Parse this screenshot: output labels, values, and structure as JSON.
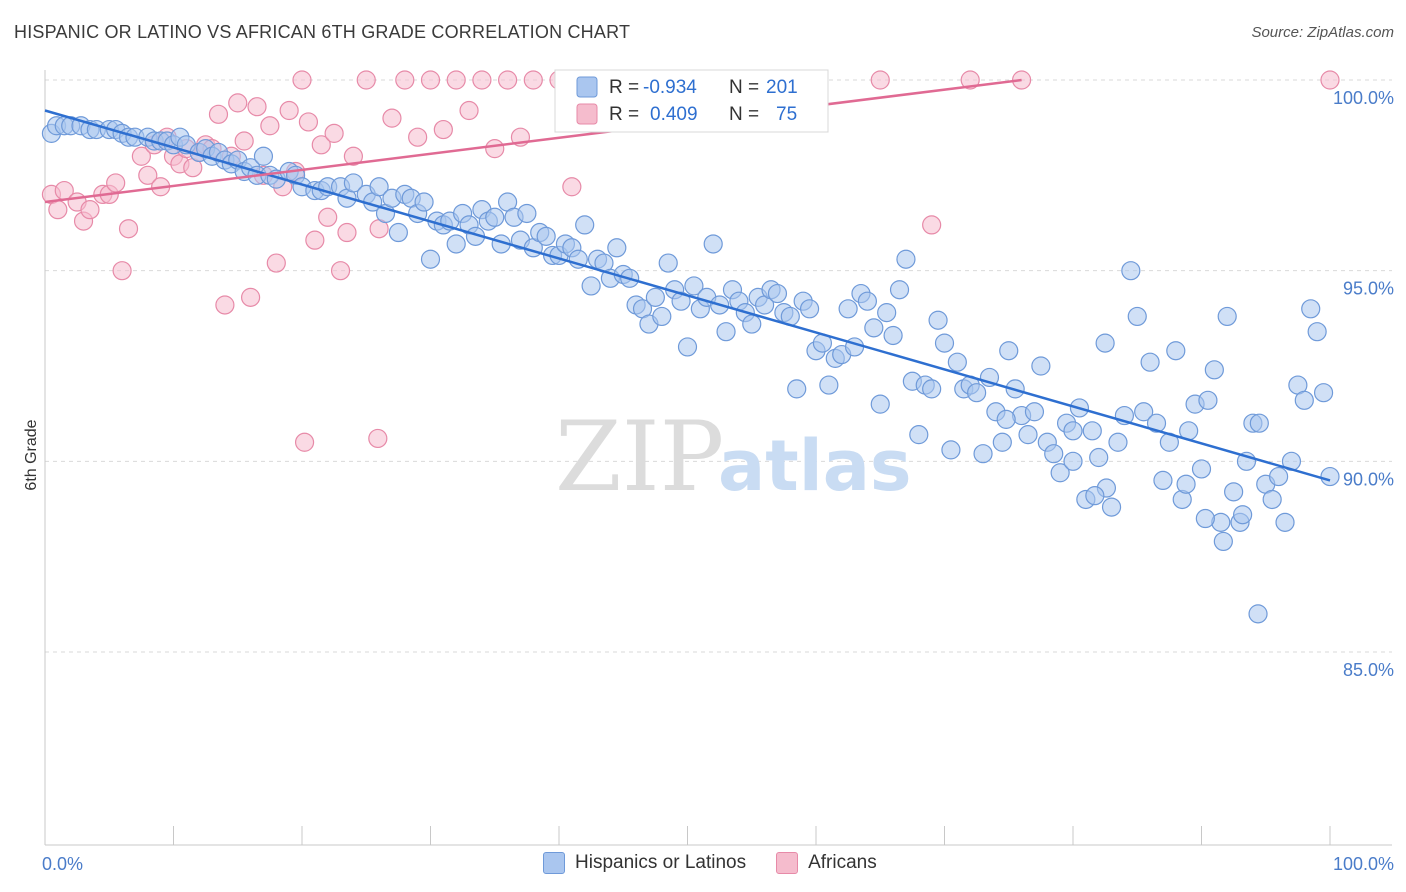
{
  "title": "HISPANIC OR LATINO VS AFRICAN 6TH GRADE CORRELATION CHART",
  "source": "Source: ZipAtlas.com",
  "watermark": {
    "zip": "ZIP",
    "atlas": "atlas"
  },
  "colors": {
    "blue_fill": "#aac6ef",
    "blue_stroke": "#6f9ad9",
    "blue_line": "#2e6fd0",
    "pink_fill": "#f5bccd",
    "pink_stroke": "#e78aa8",
    "pink_line": "#e06a93",
    "tick_text": "#4a7cc9",
    "grid": "#d9d9d9"
  },
  "legend_top": [
    {
      "r_label": "R =",
      "r_value": "-0.934",
      "n_label": "N =",
      "n_value": "201"
    },
    {
      "r_label": "R =",
      "r_value": "0.409",
      "n_label": "N =",
      "n_value": "75"
    }
  ],
  "legend_bottom": [
    "Hispanics or Latinos",
    "Africans"
  ],
  "chart_data": {
    "type": "scatter",
    "title": "HISPANIC OR LATINO VS AFRICAN 6TH GRADE CORRELATION CHART",
    "xlabel": "",
    "ylabel": "6th Grade",
    "xlim": [
      0,
      100
    ],
    "ylim": [
      80.5,
      100.5
    ],
    "x_ticks": [
      "0.0%",
      "100.0%"
    ],
    "y_ticks": [
      {
        "value": 100,
        "label": "100.0%"
      },
      {
        "value": 95,
        "label": "95.0%"
      },
      {
        "value": 90,
        "label": "90.0%"
      },
      {
        "value": 85,
        "label": "85.0%"
      }
    ],
    "grid": "horizontal dashed",
    "series": [
      {
        "name": "Hispanics or Latinos",
        "trend": {
          "x": [
            0,
            100
          ],
          "y": [
            99.2,
            89.5
          ]
        },
        "points": [
          [
            0.5,
            98.6
          ],
          [
            0.9,
            98.8
          ],
          [
            1.5,
            98.8
          ],
          [
            2.0,
            98.8
          ],
          [
            2.8,
            98.8
          ],
          [
            3.5,
            98.7
          ],
          [
            4.0,
            98.7
          ],
          [
            5.0,
            98.7
          ],
          [
            5.5,
            98.7
          ],
          [
            6.0,
            98.6
          ],
          [
            6.5,
            98.5
          ],
          [
            7.0,
            98.5
          ],
          [
            8.0,
            98.5
          ],
          [
            8.5,
            98.4
          ],
          [
            9.0,
            98.4
          ],
          [
            9.5,
            98.4
          ],
          [
            10.0,
            98.3
          ],
          [
            10.5,
            98.5
          ],
          [
            11.0,
            98.3
          ],
          [
            12.0,
            98.1
          ],
          [
            12.5,
            98.2
          ],
          [
            13.0,
            98.0
          ],
          [
            13.5,
            98.1
          ],
          [
            14.0,
            97.9
          ],
          [
            14.5,
            97.8
          ],
          [
            15.0,
            97.9
          ],
          [
            15.5,
            97.6
          ],
          [
            16.0,
            97.7
          ],
          [
            16.5,
            97.5
          ],
          [
            17.0,
            98.0
          ],
          [
            17.5,
            97.5
          ],
          [
            18.0,
            97.4
          ],
          [
            19.0,
            97.6
          ],
          [
            19.5,
            97.5
          ],
          [
            20.0,
            97.2
          ],
          [
            21.0,
            97.1
          ],
          [
            21.5,
            97.1
          ],
          [
            22.0,
            97.2
          ],
          [
            23.0,
            97.2
          ],
          [
            23.5,
            96.9
          ],
          [
            24.0,
            97.3
          ],
          [
            25.0,
            97.0
          ],
          [
            25.5,
            96.8
          ],
          [
            26.0,
            97.2
          ],
          [
            26.5,
            96.5
          ],
          [
            27.0,
            96.9
          ],
          [
            27.5,
            96.0
          ],
          [
            28.0,
            97.0
          ],
          [
            28.5,
            96.9
          ],
          [
            29.0,
            96.5
          ],
          [
            29.5,
            96.8
          ],
          [
            30.0,
            95.3
          ],
          [
            30.5,
            96.3
          ],
          [
            31.0,
            96.2
          ],
          [
            31.5,
            96.3
          ],
          [
            32.0,
            95.7
          ],
          [
            32.5,
            96.5
          ],
          [
            33.0,
            96.2
          ],
          [
            33.5,
            95.9
          ],
          [
            34.0,
            96.6
          ],
          [
            34.5,
            96.3
          ],
          [
            35.0,
            96.4
          ],
          [
            35.5,
            95.7
          ],
          [
            36.0,
            96.8
          ],
          [
            36.5,
            96.4
          ],
          [
            37.0,
            95.8
          ],
          [
            37.5,
            96.5
          ],
          [
            38.0,
            95.6
          ],
          [
            38.5,
            96.0
          ],
          [
            39.0,
            95.9
          ],
          [
            39.5,
            95.4
          ],
          [
            40.0,
            95.4
          ],
          [
            40.5,
            95.7
          ],
          [
            41.0,
            95.6
          ],
          [
            41.5,
            95.3
          ],
          [
            42.0,
            96.2
          ],
          [
            42.5,
            94.6
          ],
          [
            43.0,
            95.3
          ],
          [
            43.5,
            95.2
          ],
          [
            44.0,
            94.8
          ],
          [
            44.5,
            95.6
          ],
          [
            45.0,
            94.9
          ],
          [
            45.5,
            94.8
          ],
          [
            46.0,
            94.1
          ],
          [
            46.5,
            94.0
          ],
          [
            47.0,
            93.6
          ],
          [
            47.5,
            94.3
          ],
          [
            48.0,
            93.8
          ],
          [
            48.5,
            95.2
          ],
          [
            49.0,
            94.5
          ],
          [
            49.5,
            94.2
          ],
          [
            50.0,
            93.0
          ],
          [
            50.5,
            94.6
          ],
          [
            51.0,
            94.0
          ],
          [
            51.5,
            94.3
          ],
          [
            52.0,
            95.7
          ],
          [
            52.5,
            94.1
          ],
          [
            53.0,
            93.4
          ],
          [
            53.5,
            94.5
          ],
          [
            54.0,
            94.2
          ],
          [
            54.5,
            93.9
          ],
          [
            55.0,
            93.6
          ],
          [
            55.5,
            94.3
          ],
          [
            56.0,
            94.1
          ],
          [
            56.5,
            94.5
          ],
          [
            57.0,
            94.4
          ],
          [
            57.5,
            93.9
          ],
          [
            58.0,
            93.8
          ],
          [
            58.5,
            91.9
          ],
          [
            59.0,
            94.2
          ],
          [
            59.5,
            94.0
          ],
          [
            60.0,
            92.9
          ],
          [
            60.5,
            93.1
          ],
          [
            61.0,
            92.0
          ],
          [
            61.5,
            92.7
          ],
          [
            62.0,
            92.8
          ],
          [
            62.5,
            94.0
          ],
          [
            63.0,
            93.0
          ],
          [
            63.5,
            94.4
          ],
          [
            64.0,
            94.2
          ],
          [
            64.5,
            93.5
          ],
          [
            65.0,
            91.5
          ],
          [
            65.5,
            93.9
          ],
          [
            66.0,
            93.3
          ],
          [
            66.5,
            94.5
          ],
          [
            67.0,
            95.3
          ],
          [
            67.5,
            92.1
          ],
          [
            68.0,
            90.7
          ],
          [
            68.5,
            92.0
          ],
          [
            69.0,
            91.9
          ],
          [
            69.5,
            93.7
          ],
          [
            70.0,
            93.1
          ],
          [
            70.5,
            90.3
          ],
          [
            71.0,
            92.6
          ],
          [
            71.5,
            91.9
          ],
          [
            72.0,
            92.0
          ],
          [
            72.5,
            91.8
          ],
          [
            73.0,
            90.2
          ],
          [
            73.5,
            92.2
          ],
          [
            74.0,
            91.3
          ],
          [
            74.5,
            90.5
          ],
          [
            75.0,
            92.9
          ],
          [
            75.5,
            91.9
          ],
          [
            76.0,
            91.2
          ],
          [
            76.5,
            90.7
          ],
          [
            77.0,
            91.3
          ],
          [
            77.5,
            92.5
          ],
          [
            78.0,
            90.5
          ],
          [
            78.5,
            90.2
          ],
          [
            79.0,
            89.7
          ],
          [
            79.5,
            91.0
          ],
          [
            80.0,
            90.8
          ],
          [
            80.5,
            91.4
          ],
          [
            81.0,
            89.0
          ],
          [
            81.5,
            90.8
          ],
          [
            82.0,
            90.1
          ],
          [
            82.5,
            93.1
          ],
          [
            83.0,
            88.8
          ],
          [
            83.5,
            90.5
          ],
          [
            84.0,
            91.2
          ],
          [
            84.5,
            95.0
          ],
          [
            85.0,
            93.8
          ],
          [
            85.5,
            91.3
          ],
          [
            86.0,
            92.6
          ],
          [
            86.5,
            91.0
          ],
          [
            87.0,
            89.5
          ],
          [
            87.5,
            90.5
          ],
          [
            88.0,
            92.9
          ],
          [
            88.5,
            89.0
          ],
          [
            89.0,
            90.8
          ],
          [
            89.5,
            91.5
          ],
          [
            90.0,
            89.8
          ],
          [
            90.5,
            91.6
          ],
          [
            91.0,
            92.4
          ],
          [
            91.5,
            88.4
          ],
          [
            92.0,
            93.8
          ],
          [
            92.5,
            89.2
          ],
          [
            93.0,
            88.4
          ],
          [
            93.5,
            90.0
          ],
          [
            94.0,
            91.0
          ],
          [
            94.5,
            91.0
          ],
          [
            95.0,
            89.4
          ],
          [
            95.5,
            89.0
          ],
          [
            96.0,
            89.6
          ],
          [
            96.5,
            88.4
          ],
          [
            97.0,
            90.0
          ],
          [
            97.5,
            92.0
          ],
          [
            98.0,
            91.6
          ],
          [
            98.5,
            94.0
          ],
          [
            99.0,
            93.4
          ],
          [
            99.5,
            91.8
          ],
          [
            100.0,
            89.6
          ],
          [
            94.4,
            86.0
          ],
          [
            93.2,
            88.6
          ],
          [
            91.7,
            87.9
          ],
          [
            90.3,
            88.5
          ],
          [
            88.8,
            89.4
          ],
          [
            82.6,
            89.3
          ],
          [
            81.7,
            89.1
          ],
          [
            80.0,
            90.0
          ],
          [
            74.8,
            91.1
          ]
        ]
      },
      {
        "name": "Africans",
        "trend": {
          "x": [
            0,
            76
          ],
          "y": [
            96.8,
            100.0
          ]
        },
        "points": [
          [
            0.5,
            97.0
          ],
          [
            1.0,
            96.6
          ],
          [
            1.5,
            97.1
          ],
          [
            2.5,
            96.8
          ],
          [
            3.0,
            96.3
          ],
          [
            3.5,
            96.6
          ],
          [
            4.5,
            97.0
          ],
          [
            5.0,
            97.0
          ],
          [
            5.5,
            97.3
          ],
          [
            6.0,
            95.0
          ],
          [
            6.5,
            96.1
          ],
          [
            7.5,
            98.0
          ],
          [
            8.0,
            97.5
          ],
          [
            8.5,
            98.3
          ],
          [
            9.0,
            97.2
          ],
          [
            9.5,
            98.5
          ],
          [
            10.0,
            98.0
          ],
          [
            10.5,
            97.8
          ],
          [
            11.0,
            98.2
          ],
          [
            11.5,
            97.7
          ],
          [
            12.0,
            98.1
          ],
          [
            12.5,
            98.3
          ],
          [
            13.0,
            98.2
          ],
          [
            13.5,
            99.1
          ],
          [
            14.0,
            94.1
          ],
          [
            14.5,
            98.0
          ],
          [
            15.0,
            99.4
          ],
          [
            15.5,
            98.4
          ],
          [
            16.0,
            94.3
          ],
          [
            16.5,
            99.3
          ],
          [
            17.0,
            97.5
          ],
          [
            17.5,
            98.8
          ],
          [
            18.0,
            95.2
          ],
          [
            18.5,
            97.2
          ],
          [
            19.0,
            99.2
          ],
          [
            19.5,
            97.6
          ],
          [
            20.0,
            100.0
          ],
          [
            20.5,
            98.9
          ],
          [
            20.2,
            90.5
          ],
          [
            21.0,
            95.8
          ],
          [
            21.5,
            98.3
          ],
          [
            22.0,
            96.4
          ],
          [
            22.5,
            98.6
          ],
          [
            23.0,
            95.0
          ],
          [
            23.5,
            96.0
          ],
          [
            24.0,
            98.0
          ],
          [
            25.0,
            100.0
          ],
          [
            26.0,
            96.1
          ],
          [
            27.0,
            99.0
          ],
          [
            28.0,
            100.0
          ],
          [
            25.9,
            90.6
          ],
          [
            29.0,
            98.5
          ],
          [
            30.0,
            100.0
          ],
          [
            31.0,
            98.7
          ],
          [
            32.0,
            100.0
          ],
          [
            33.0,
            99.2
          ],
          [
            34.0,
            100.0
          ],
          [
            35.0,
            98.2
          ],
          [
            36.0,
            100.0
          ],
          [
            37.0,
            98.5
          ],
          [
            38.0,
            100.0
          ],
          [
            40.0,
            100.0
          ],
          [
            41.0,
            97.2
          ],
          [
            45.0,
            100.0
          ],
          [
            48.0,
            100.0
          ],
          [
            52.0,
            100.0
          ],
          [
            56.0,
            100.0
          ],
          [
            60.0,
            100.0
          ],
          [
            65.0,
            100.0
          ],
          [
            69.0,
            96.2
          ],
          [
            72.0,
            100.0
          ],
          [
            76.0,
            100.0
          ],
          [
            100.0,
            100.0
          ],
          [
            42.0,
            100.0
          ],
          [
            49.0,
            100.0
          ]
        ]
      }
    ]
  }
}
